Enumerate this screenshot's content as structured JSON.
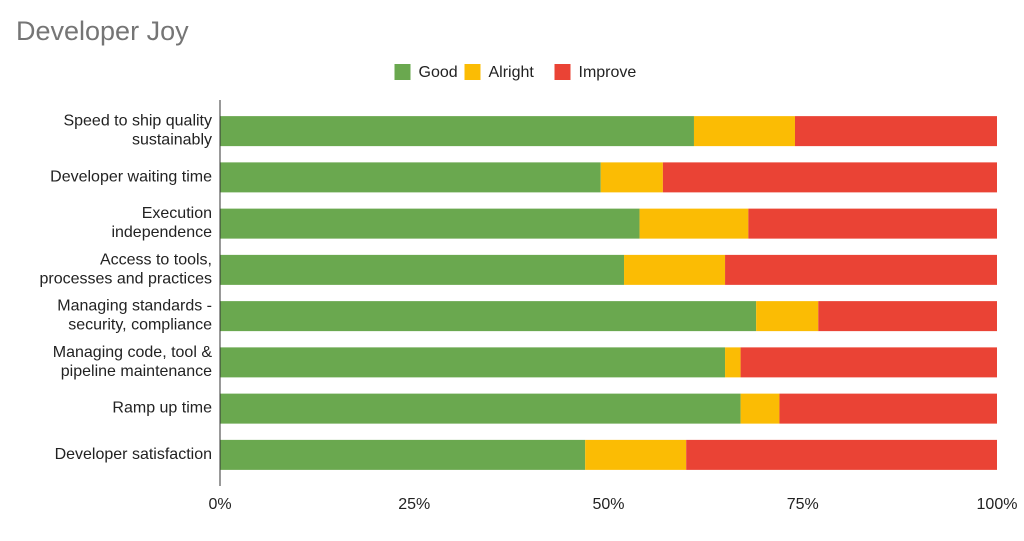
{
  "chart_data": {
    "type": "stacked-bar-horizontal",
    "title": "Developer Joy",
    "categories": [
      [
        "Speed to ship quality",
        "sustainably"
      ],
      [
        "Developer waiting time"
      ],
      [
        "Execution",
        "independence"
      ],
      [
        "Access to tools,",
        "processes and practices"
      ],
      [
        "Managing standards -",
        "security, compliance"
      ],
      [
        "Managing code, tool &",
        "pipeline maintenance"
      ],
      [
        "Ramp up time"
      ],
      [
        "Developer satisfaction"
      ]
    ],
    "series": [
      {
        "name": "Good",
        "color": "#6aa84f",
        "values": [
          61,
          49,
          54,
          52,
          69,
          65,
          67,
          47
        ]
      },
      {
        "name": "Alright",
        "color": "#fbbc04",
        "values": [
          13,
          8,
          14,
          13,
          8,
          2,
          5,
          13
        ]
      },
      {
        "name": "Improve",
        "color": "#ea4335",
        "values": [
          26,
          43,
          32,
          35,
          23,
          33,
          28,
          40
        ]
      }
    ],
    "xlim": [
      0,
      100
    ],
    "xticks": [
      {
        "value": 0,
        "label": "0%"
      },
      {
        "value": 25,
        "label": "25%"
      },
      {
        "value": 50,
        "label": "50%"
      },
      {
        "value": 75,
        "label": "75%"
      },
      {
        "value": 100,
        "label": "100%"
      }
    ],
    "legend": "top"
  }
}
